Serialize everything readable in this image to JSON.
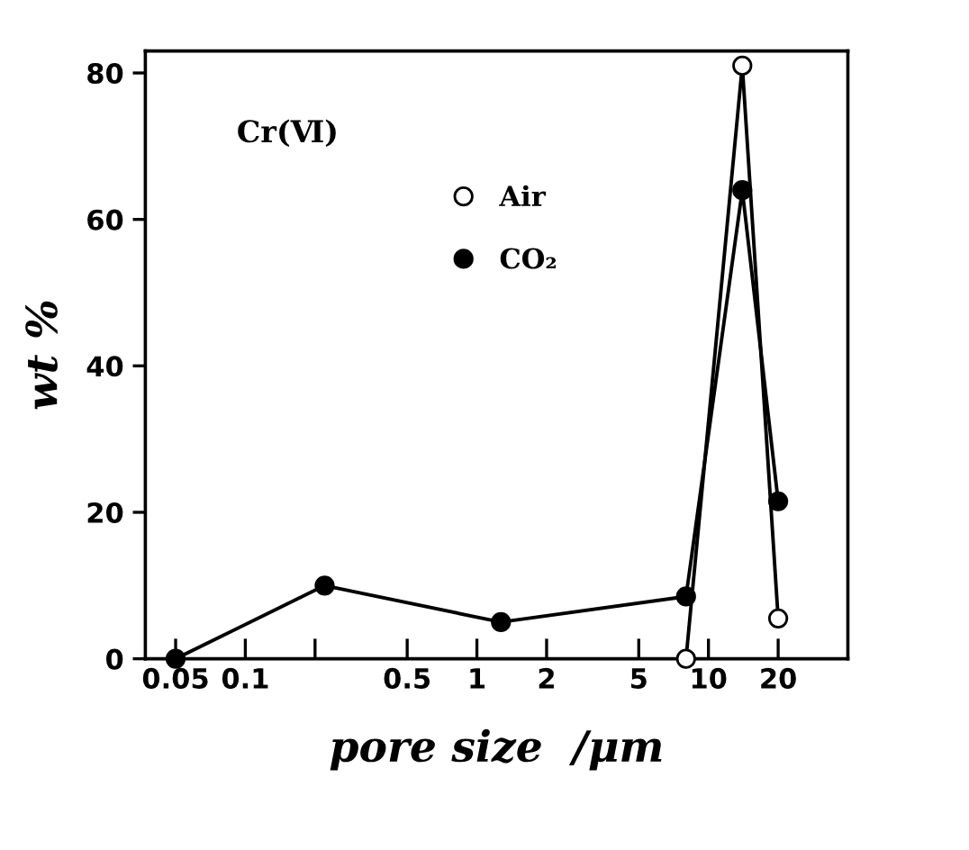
{
  "chart_data": {
    "type": "line",
    "xlabel": "pore size  /μm",
    "ylabel": "wt %",
    "log": "x",
    "annotations": [
      "Cr(Ⅵ)"
    ],
    "xlim": [
      0.037,
      40
    ],
    "xticks": [
      0.05,
      0.1,
      {
        "value": 0.2,
        "label": null
      },
      0.5,
      1,
      2,
      5,
      10,
      20
    ],
    "ylim": [
      0,
      83
    ],
    "yticks": [
      0,
      20,
      40,
      60,
      80
    ],
    "grid": false,
    "legend": "top center",
    "line_style": "solid",
    "series": [
      {
        "name": "Air",
        "color": "#000000",
        "marker": "circle_open",
        "x": [
          8,
          14,
          20
        ],
        "values": [
          0,
          81,
          5.5
        ]
      },
      {
        "name": "CO₂",
        "color": "#000000",
        "marker": "circle",
        "x": [
          0.05,
          0.22,
          1.27,
          8,
          14,
          20
        ],
        "values": [
          0,
          10,
          5,
          8.5,
          64,
          21.5
        ]
      }
    ]
  }
}
